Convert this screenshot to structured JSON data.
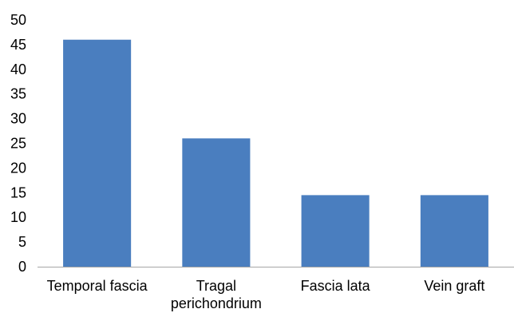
{
  "chart_data": {
    "type": "bar",
    "categories": [
      [
        "Temporal fascia"
      ],
      [
        "Tragal",
        "perichondrium"
      ],
      [
        "Fascia lata"
      ],
      [
        "Vein graft"
      ]
    ],
    "values": [
      46,
      26,
      14.5,
      14.5
    ],
    "ylim": [
      0,
      50
    ],
    "yticks": [
      0,
      5,
      10,
      15,
      20,
      25,
      30,
      35,
      40,
      45,
      50
    ],
    "grid": false,
    "legend": "none",
    "bar_color": "#4a7ebf",
    "axis_color": "#a6a6a6"
  }
}
